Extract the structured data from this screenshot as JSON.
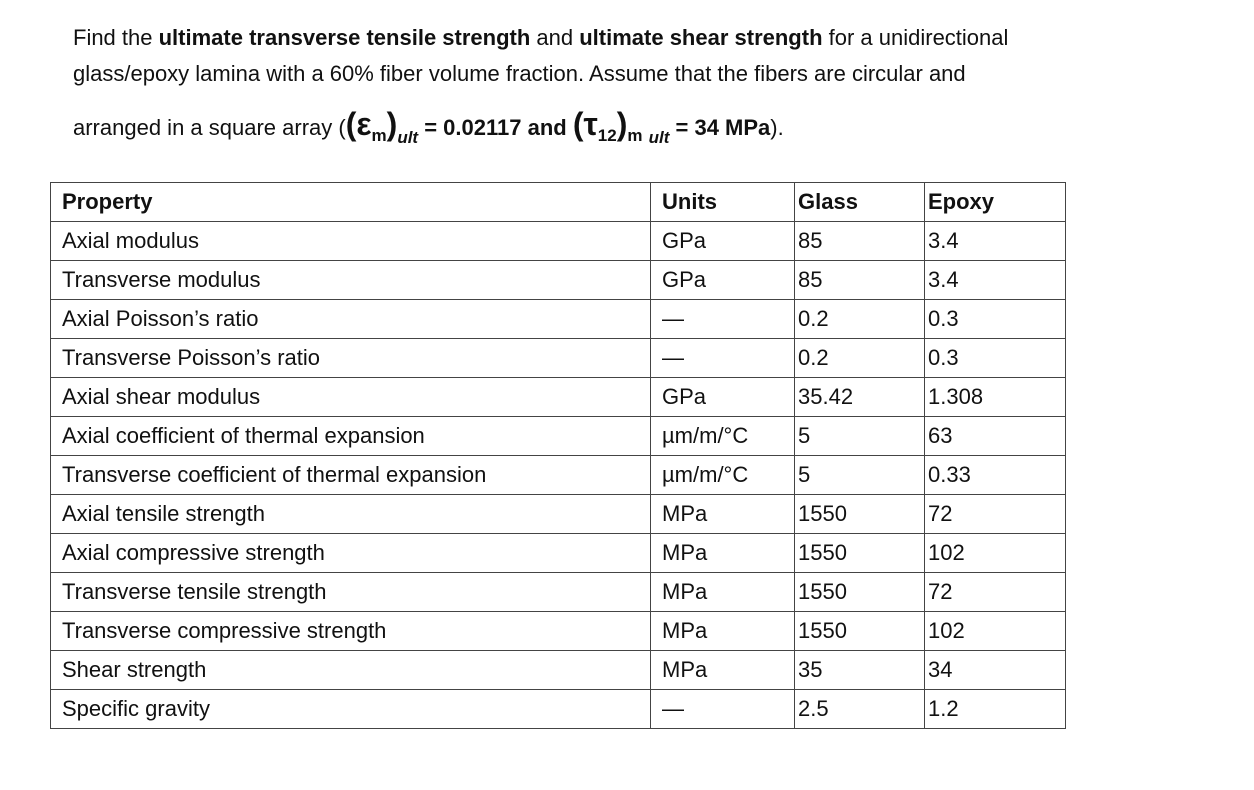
{
  "problem": {
    "runs": [
      "Find the ",
      "ultimate transverse tensile strength",
      " and ",
      "ultimate shear strength",
      " for a unidirectional",
      "glass/epoxy lamina with a 60% fiber volume fraction. Assume that the fibers are circular and",
      "arranged in a square array (",
      "(",
      "ε",
      "m",
      ")",
      "ult",
      " = 0.02117 and ",
      "(",
      "τ",
      "12",
      ")",
      "m",
      "ult",
      " = 34 MPa",
      ")."
    ]
  },
  "table": {
    "header": [
      "Property",
      "Units",
      "Glass",
      "Epoxy"
    ],
    "rows": [
      [
        "Axial modulus",
        "GPa",
        "85",
        "3.4"
      ],
      [
        "Transverse modulus",
        "GPa",
        "85",
        "3.4"
      ],
      [
        "Axial Poisson’s ratio",
        "—",
        "0.2",
        "0.3"
      ],
      [
        "Transverse Poisson’s ratio",
        "—",
        "0.2",
        "0.3"
      ],
      [
        "Axial shear modulus",
        "GPa",
        "35.42",
        "1.308"
      ],
      [
        "Axial coefficient of thermal expansion",
        "µm/m/°C",
        "5",
        "63"
      ],
      [
        "Transverse coefficient of thermal expansion",
        "µm/m/°C",
        "5",
        "0.33"
      ],
      [
        "Axial tensile strength",
        "MPa",
        "1550",
        "72"
      ],
      [
        "Axial compressive strength",
        "MPa",
        "1550",
        "102"
      ],
      [
        "Transverse tensile strength",
        "MPa",
        "1550",
        "72"
      ],
      [
        "Transverse compressive strength",
        "MPa",
        "1550",
        "102"
      ],
      [
        "Shear strength",
        "MPa",
        "35",
        "34"
      ],
      [
        "Specific gravity",
        "—",
        "2.5",
        "1.2"
      ]
    ]
  }
}
